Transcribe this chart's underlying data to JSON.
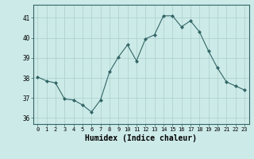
{
  "x": [
    0,
    1,
    2,
    3,
    4,
    5,
    6,
    7,
    8,
    9,
    10,
    11,
    12,
    13,
    14,
    15,
    16,
    17,
    18,
    19,
    20,
    21,
    22,
    23
  ],
  "y": [
    38.05,
    37.85,
    37.75,
    36.95,
    36.9,
    36.65,
    36.3,
    36.9,
    38.3,
    39.05,
    39.65,
    38.85,
    39.95,
    40.15,
    41.1,
    41.1,
    40.55,
    40.85,
    40.3,
    39.35,
    38.5,
    37.8,
    37.6,
    37.4
  ],
  "bg_color": "#cceae8",
  "grid_color": "#aacfcc",
  "line_color": "#336666",
  "marker_color": "#336666",
  "xlabel": "Humidex (Indice chaleur)",
  "xlabel_fontsize": 7,
  "yticks": [
    36,
    37,
    38,
    39,
    40,
    41
  ],
  "xticks": [
    0,
    1,
    2,
    3,
    4,
    5,
    6,
    7,
    8,
    9,
    10,
    11,
    12,
    13,
    14,
    15,
    16,
    17,
    18,
    19,
    20,
    21,
    22,
    23
  ],
  "ylim": [
    35.7,
    41.65
  ],
  "xlim": [
    -0.5,
    23.5
  ]
}
